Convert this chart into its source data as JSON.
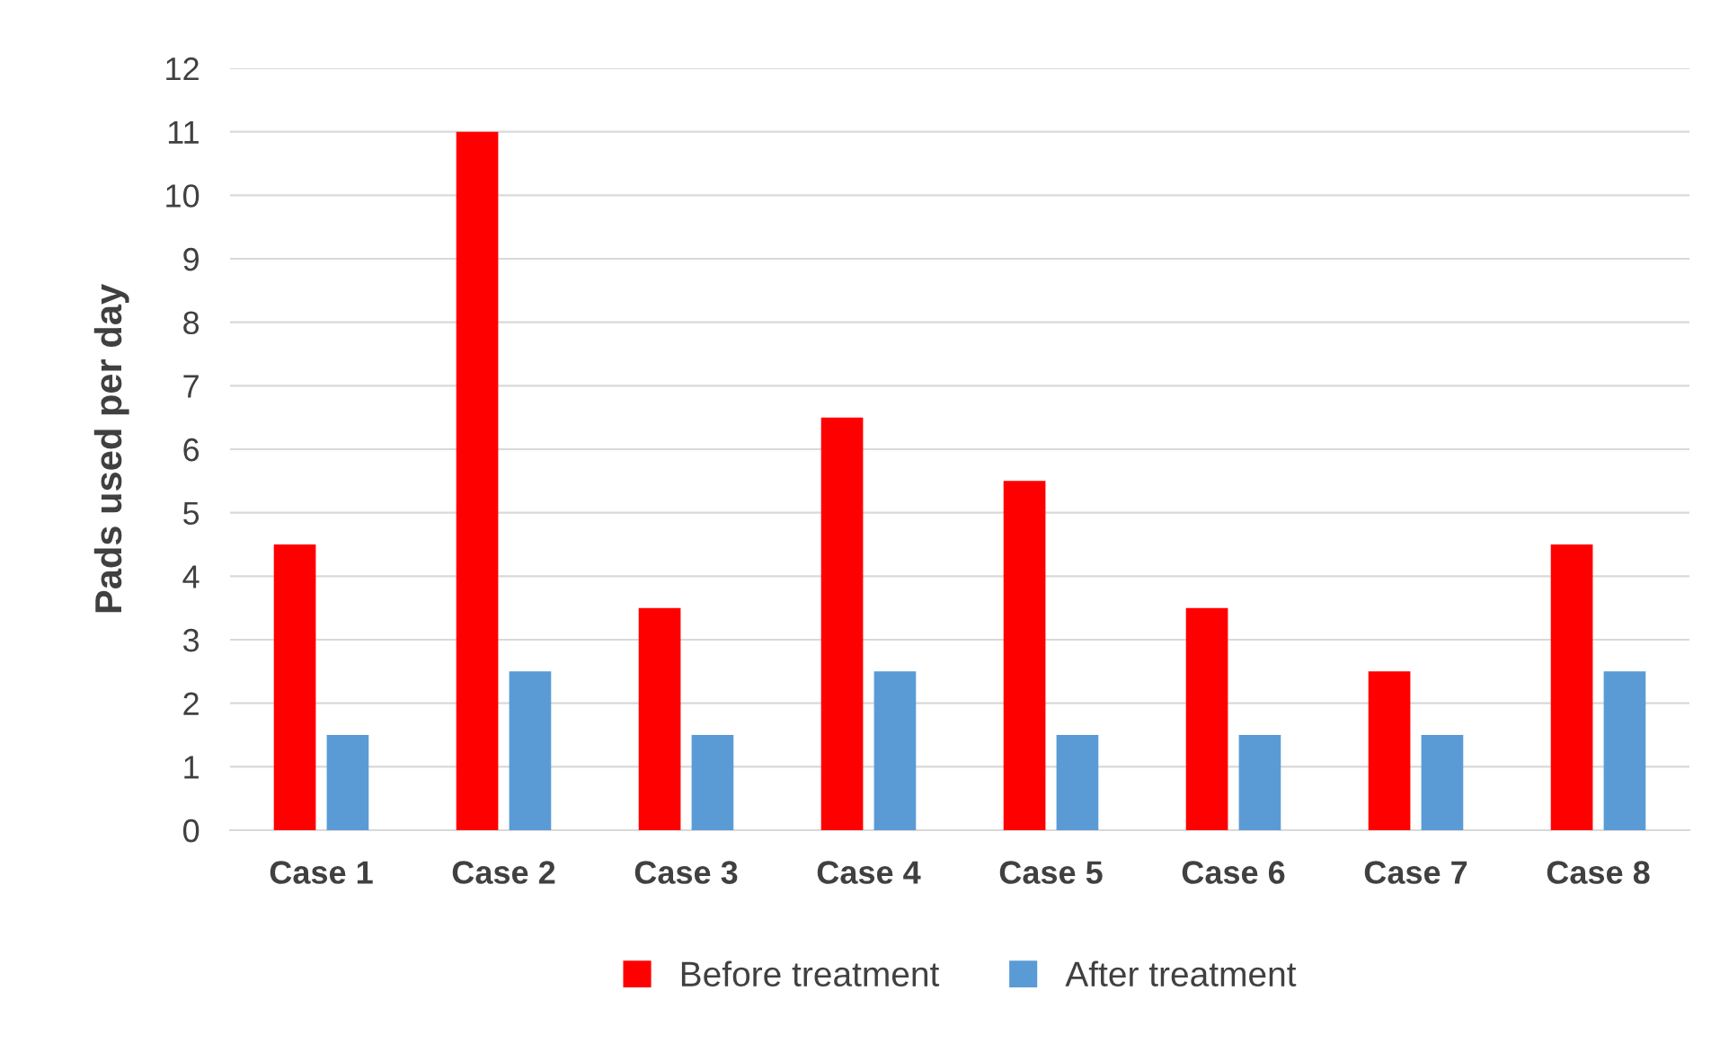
{
  "chart_data": {
    "type": "bar",
    "ylabel": "Pads used per day",
    "categories": [
      "Case 1",
      "Case 2",
      "Case 3",
      "Case 4",
      "Case 5",
      "Case 6",
      "Case 7",
      "Case 8"
    ],
    "series": [
      {
        "name": "Before treatment",
        "color": "#ff0000",
        "values": [
          4.5,
          11,
          3.5,
          6.5,
          5.5,
          3.5,
          2.5,
          4.5
        ]
      },
      {
        "name": "After treatment",
        "color": "#5b9bd5",
        "values": [
          1.5,
          2.5,
          1.5,
          2.5,
          1.5,
          1.5,
          1.5,
          2.5
        ]
      }
    ],
    "ylim": [
      0,
      12
    ],
    "yticks": [
      0,
      1,
      2,
      3,
      4,
      5,
      6,
      7,
      8,
      9,
      10,
      11,
      12
    ],
    "grid": "y",
    "legend": "bottom"
  }
}
